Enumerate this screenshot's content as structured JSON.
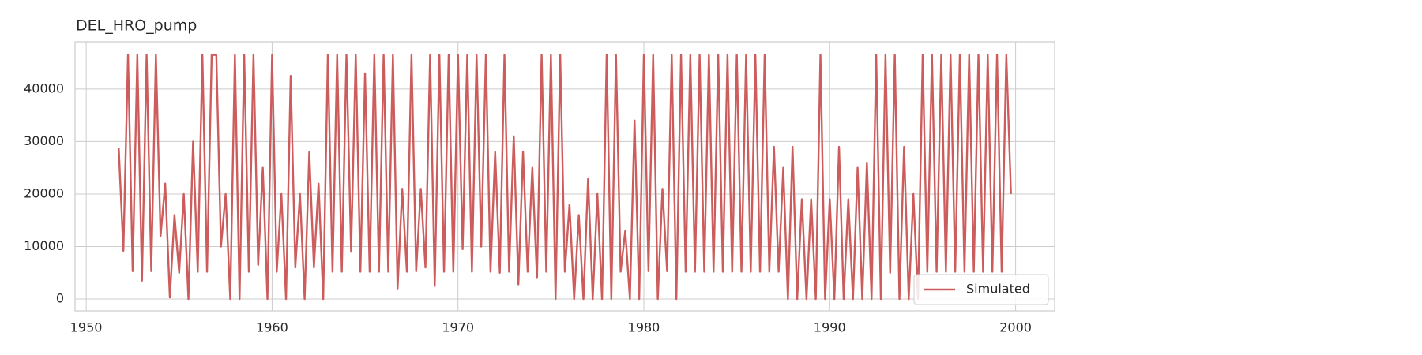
{
  "chart_data": {
    "type": "line",
    "title": "DEL_HRO_pump",
    "x": [
      1951.75,
      1952,
      1952.25,
      1952.5,
      1952.75,
      1953,
      1953.25,
      1953.5,
      1953.75,
      1954,
      1954.25,
      1954.5,
      1954.75,
      1955,
      1955.25,
      1955.5,
      1955.75,
      1956,
      1956.25,
      1956.5,
      1956.75,
      1957,
      1957.25,
      1957.5,
      1957.75,
      1958,
      1958.25,
      1958.5,
      1958.75,
      1959,
      1959.25,
      1959.5,
      1959.75,
      1960,
      1960.25,
      1960.5,
      1960.75,
      1961,
      1961.25,
      1961.5,
      1961.75,
      1962,
      1962.25,
      1962.5,
      1962.75,
      1963,
      1963.25,
      1963.5,
      1963.75,
      1964,
      1964.25,
      1964.5,
      1964.75,
      1965,
      1965.25,
      1965.5,
      1965.75,
      1966,
      1966.25,
      1966.5,
      1966.75,
      1967,
      1967.25,
      1967.5,
      1967.75,
      1968,
      1968.25,
      1968.5,
      1968.75,
      1969,
      1969.25,
      1969.5,
      1969.75,
      1970,
      1970.25,
      1970.5,
      1970.75,
      1971,
      1971.25,
      1971.5,
      1971.75,
      1972,
      1972.25,
      1972.5,
      1972.75,
      1973,
      1973.25,
      1973.5,
      1973.75,
      1974,
      1974.25,
      1974.5,
      1974.75,
      1975,
      1975.25,
      1975.5,
      1975.75,
      1976,
      1976.25,
      1976.5,
      1976.75,
      1977,
      1977.25,
      1977.5,
      1977.75,
      1978,
      1978.25,
      1978.5,
      1978.75,
      1979,
      1979.25,
      1979.5,
      1979.75,
      1980,
      1980.25,
      1980.5,
      1980.75,
      1981,
      1981.25,
      1981.5,
      1981.75,
      1982,
      1982.25,
      1982.5,
      1982.75,
      1983,
      1983.25,
      1983.5,
      1983.75,
      1984,
      1984.25,
      1984.5,
      1984.75,
      1985,
      1985.25,
      1985.5,
      1985.75,
      1986,
      1986.25,
      1986.5,
      1986.75,
      1987,
      1987.25,
      1987.5,
      1987.75,
      1988,
      1988.25,
      1988.5,
      1988.75,
      1989,
      1989.25,
      1989.5,
      1989.75,
      1990,
      1990.25,
      1990.5,
      1990.75,
      1991,
      1991.25,
      1991.5,
      1991.75,
      1992,
      1992.25,
      1992.5,
      1992.75,
      1993,
      1993.25,
      1993.5,
      1993.75,
      1994,
      1994.25,
      1994.5,
      1994.75,
      1995,
      1995.25,
      1995.5,
      1995.75,
      1996,
      1996.25,
      1996.5,
      1996.75,
      1997,
      1997.25,
      1997.5,
      1997.75,
      1998,
      1998.25,
      1998.5,
      1998.75,
      1999,
      1999.25,
      1999.5,
      1999.75
    ],
    "series": [
      {
        "name": "Simulated",
        "color": "#cd5c5c",
        "values": [
          28800,
          9200,
          46500,
          5300,
          46500,
          3500,
          46500,
          5300,
          46500,
          12000,
          22000,
          300,
          16000,
          5000,
          20000,
          0,
          30000,
          5200,
          46500,
          5200,
          46500,
          46500,
          10000,
          20000,
          0,
          46500,
          0,
          46500,
          5200,
          46500,
          6500,
          25000,
          0,
          46500,
          5200,
          20000,
          0,
          42500,
          6000,
          20000,
          0,
          28000,
          6000,
          22000,
          0,
          46500,
          5200,
          46500,
          5200,
          46500,
          9000,
          46500,
          5200,
          43000,
          5200,
          46500,
          5200,
          46500,
          5200,
          46500,
          2000,
          21000,
          5200,
          46500,
          5300,
          21000,
          6000,
          46500,
          2500,
          46500,
          5200,
          46500,
          5200,
          46500,
          9500,
          46500,
          5200,
          46500,
          10000,
          46500,
          5200,
          28000,
          5000,
          46500,
          5200,
          31000,
          2800,
          28000,
          5200,
          25000,
          4000,
          46500,
          5200,
          46500,
          0,
          46500,
          5200,
          18000,
          0,
          16000,
          0,
          23000,
          0,
          20000,
          0,
          46500,
          0,
          46500,
          5200,
          13000,
          0,
          34000,
          0,
          46500,
          5300,
          46500,
          0,
          21000,
          5300,
          46500,
          0,
          46500,
          5200,
          46500,
          5200,
          46500,
          5200,
          46500,
          5200,
          46500,
          5200,
          46500,
          5200,
          46500,
          5200,
          46500,
          5200,
          46500,
          5200,
          46500,
          5200,
          29000,
          5200,
          25000,
          0,
          29000,
          0,
          19000,
          0,
          19000,
          0,
          46500,
          0,
          19000,
          0,
          29000,
          0,
          19000,
          0,
          25000,
          0,
          26000,
          0,
          46500,
          0,
          46500,
          5000,
          46500,
          0,
          29000,
          0,
          20000,
          0,
          46500,
          5200,
          46500,
          5200,
          46500,
          5200,
          46500,
          5200,
          46500,
          5200,
          46500,
          5200,
          46500,
          5200,
          46500,
          5200,
          46500,
          5200,
          46500,
          20000
        ]
      }
    ],
    "xlim": [
      1949.4,
      2002.1
    ],
    "xticks": [
      1950,
      1960,
      1970,
      1980,
      1990,
      2000
    ],
    "ylim": [
      -2250,
      49000
    ],
    "yticks": [
      0,
      10000,
      20000,
      30000,
      40000
    ],
    "grid": true,
    "legend": "lower right"
  }
}
